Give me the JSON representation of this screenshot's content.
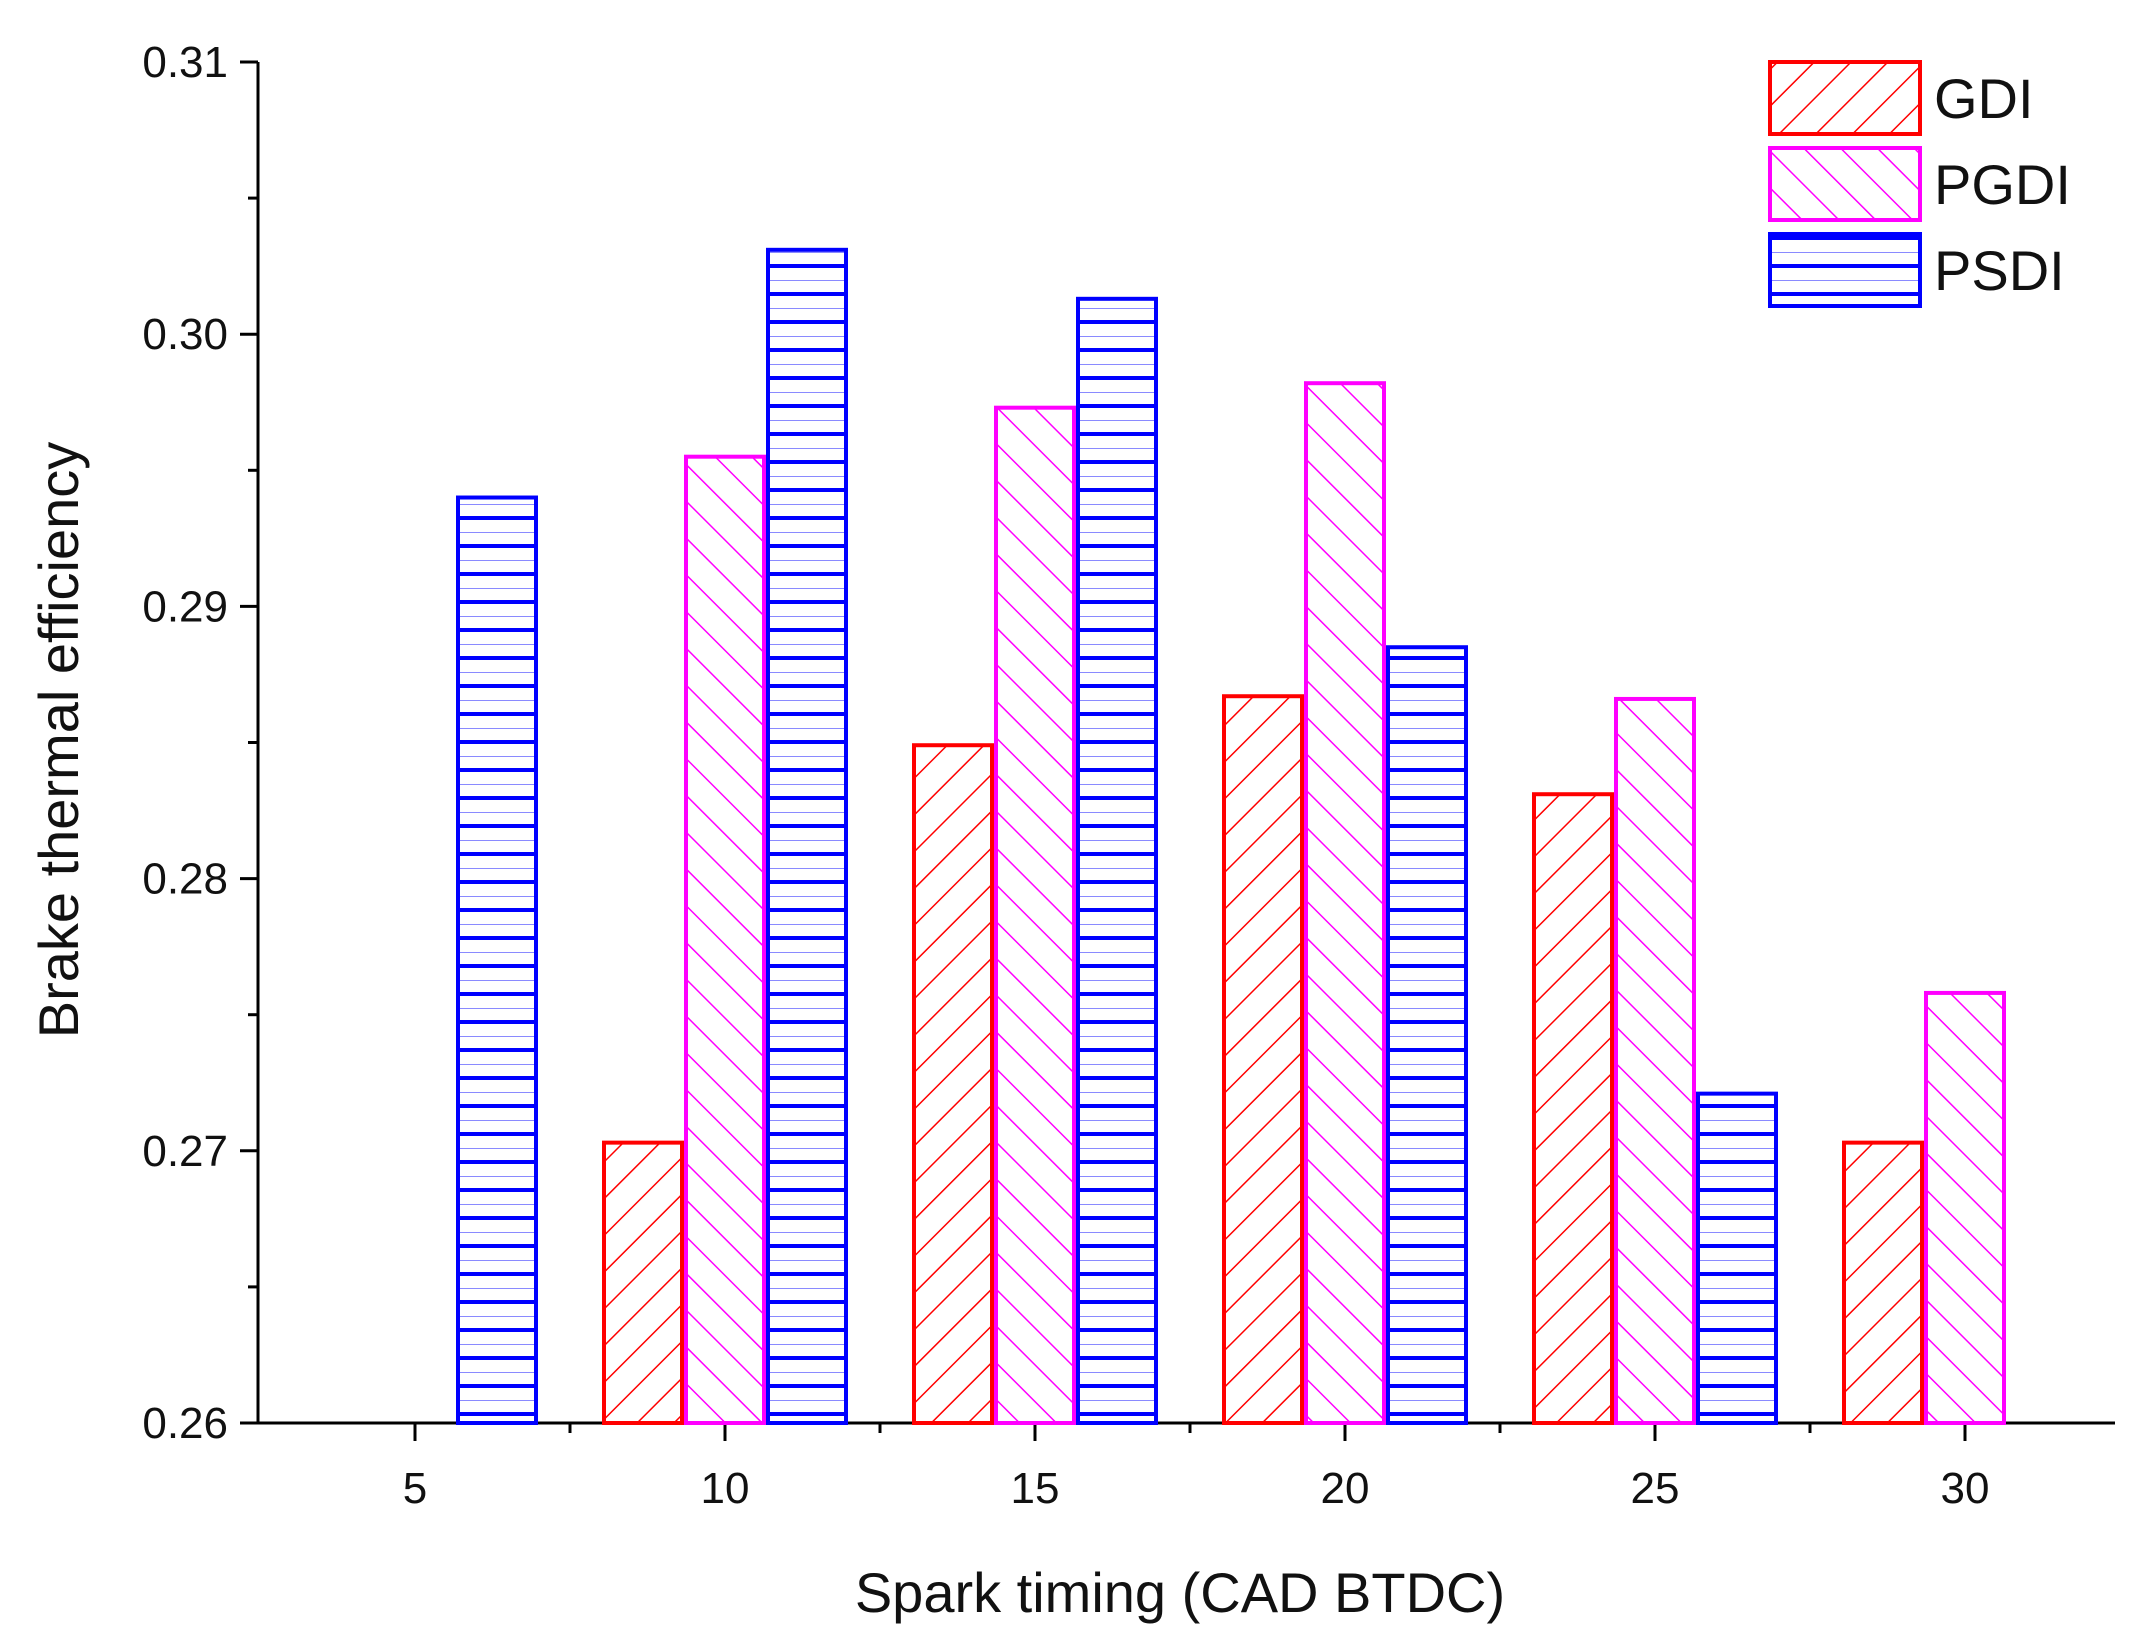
{
  "chart_data": {
    "type": "bar",
    "title": "",
    "xlabel": "Spark timing (CAD BTDC)",
    "ylabel": "Brake thermal efficiency",
    "categories": [
      "5",
      "10",
      "15",
      "20",
      "25",
      "30"
    ],
    "ylim": [
      0.26,
      0.31
    ],
    "yticks": [
      "0.26",
      "0.27",
      "0.28",
      "0.29",
      "0.30",
      "0.31"
    ],
    "legend_position": "top-right",
    "series": [
      {
        "name": "GDI",
        "color": "#ff0000",
        "pattern": "hatch-forward",
        "values": [
          null,
          0.2703,
          0.2849,
          0.2867,
          0.2831,
          0.2703
        ]
      },
      {
        "name": "PGDI",
        "color": "#ff00ff",
        "pattern": "hatch-backward",
        "values": [
          null,
          0.2955,
          0.2973,
          0.2982,
          0.2866,
          0.2758
        ]
      },
      {
        "name": "PSDI",
        "color": "#0000ff",
        "pattern": "horizontal-lines",
        "values": [
          0.294,
          0.3031,
          0.3013,
          0.2885,
          0.2721,
          null
        ]
      }
    ]
  }
}
